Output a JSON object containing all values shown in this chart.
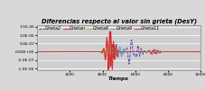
{
  "title": "Diferencias respecto al valor sin grieta (DesY)",
  "xlabel": "Tiempo",
  "ylim": [
    -1.1e-06,
    1.6e-06
  ],
  "xlim": [
    0,
    10000
  ],
  "background_color": "#d8d8d8",
  "plot_bg": "#d0d0d0",
  "series": [
    {
      "label": "Grieta2",
      "color": "#3333bb",
      "lw": 0.6,
      "ls": "--"
    },
    {
      "label": "Grietan",
      "color": "#cc2222",
      "lw": 0.6,
      "ls": "-"
    },
    {
      "label": "Grieta6",
      "color": "#ddaa00",
      "lw": 0.6,
      "ls": "-"
    },
    {
      "label": "Grieta9",
      "color": "#44aadd",
      "lw": 0.6,
      "ls": "-"
    },
    {
      "label": "Grieta11",
      "color": "#dd2222",
      "lw": 0.6,
      "ls": "-"
    }
  ],
  "yticks": [
    -1e-06,
    -5e-07,
    0.0,
    5e-07,
    1e-06,
    1.5e-06
  ],
  "ytick_labels": [
    "-1.0E-06",
    "-5.0E-07",
    "0.00E+00",
    "5.0E-07",
    "1.0E-06",
    "1.5E-06"
  ],
  "xticks": [
    2000,
    4000,
    6000,
    8000,
    10000
  ],
  "title_fontsize": 4.8,
  "label_fontsize": 4.0,
  "tick_fontsize": 3.2,
  "legend_fontsize": 3.5
}
